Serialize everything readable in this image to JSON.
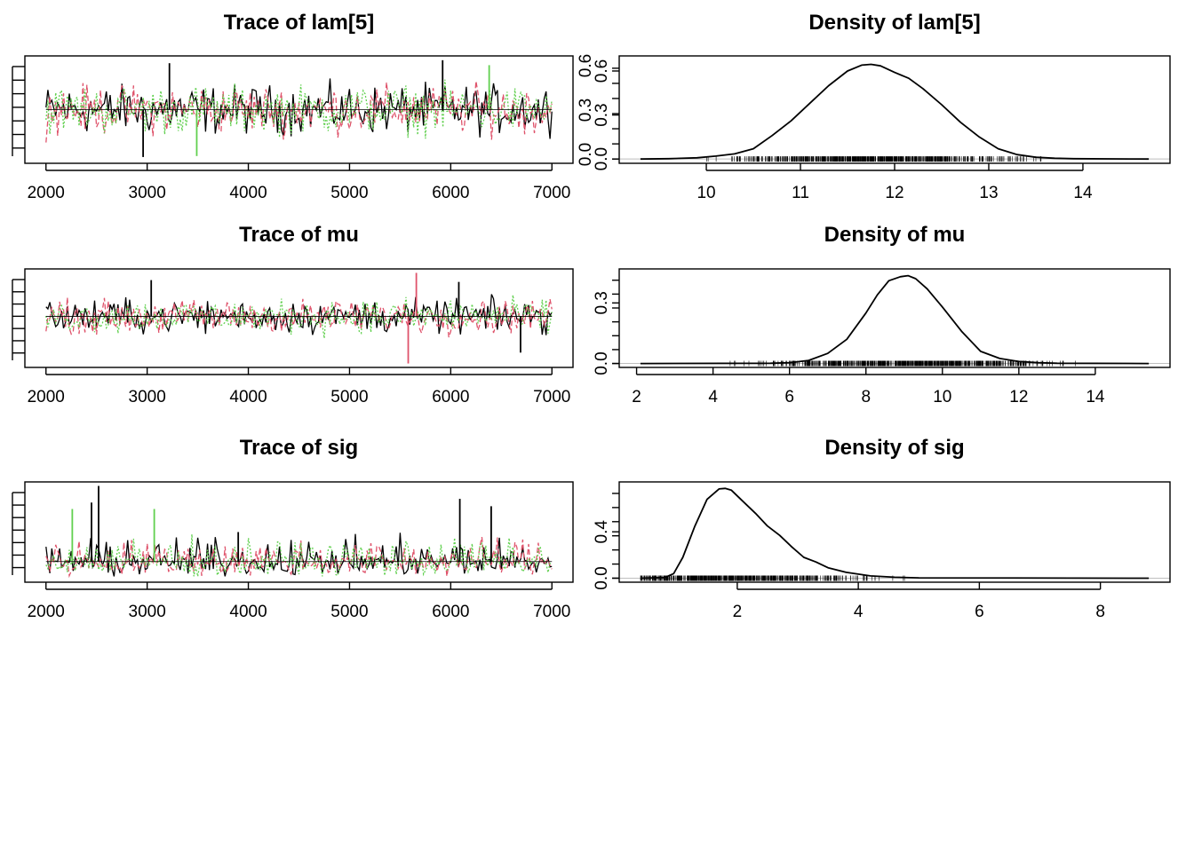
{
  "chart_data": [
    {
      "type": "line",
      "title": "Trace of lam[5]",
      "x_range": [
        2000,
        7000
      ],
      "x_ticks": [
        "2000",
        "3000",
        "4000",
        "5000",
        "6000",
        "7000"
      ],
      "y_tick_labels": [],
      "chains": 3,
      "series_colors": [
        "#000000",
        "#DF536B",
        "#61D04F"
      ],
      "center": 0.5,
      "spread": 0.16,
      "spikes": [
        {
          "x": 3220,
          "y": 0.97,
          "chain": 0
        },
        {
          "x": 5920,
          "y": 1.0,
          "chain": 0
        },
        {
          "x": 6380,
          "y": 0.95,
          "chain": 2
        },
        {
          "x": 2960,
          "y": 0.02,
          "chain": 0
        },
        {
          "x": 3490,
          "y": 0.03,
          "chain": 2
        }
      ]
    },
    {
      "type": "line",
      "title": "Density of lam[5]",
      "x_range": [
        9.3,
        14.7
      ],
      "x_ticks": [
        "10",
        "11",
        "12",
        "13",
        "14"
      ],
      "y_tick_labels": [
        "0.0",
        "0.3",
        "0.6"
      ],
      "ylim": [
        0,
        0.66
      ],
      "x": [
        9.3,
        9.6,
        9.9,
        10.1,
        10.3,
        10.5,
        10.7,
        10.9,
        11.1,
        11.3,
        11.5,
        11.65,
        11.75,
        11.85,
        12.0,
        12.15,
        12.3,
        12.5,
        12.7,
        12.9,
        13.1,
        13.3,
        13.5,
        13.7,
        13.9,
        14.7
      ],
      "y": [
        0.0,
        0.002,
        0.008,
        0.02,
        0.035,
        0.07,
        0.16,
        0.26,
        0.38,
        0.5,
        0.6,
        0.64,
        0.645,
        0.635,
        0.59,
        0.55,
        0.48,
        0.37,
        0.25,
        0.15,
        0.07,
        0.03,
        0.012,
        0.005,
        0.002,
        0.0
      ]
    },
    {
      "type": "line",
      "title": "Trace of mu",
      "x_range": [
        2000,
        7000
      ],
      "x_ticks": [
        "2000",
        "3000",
        "4000",
        "5000",
        "6000",
        "7000"
      ],
      "y_tick_labels": [],
      "chains": 3,
      "series_colors": [
        "#000000",
        "#DF536B",
        "#61D04F"
      ],
      "center": 0.52,
      "spread": 0.12,
      "spikes": [
        {
          "x": 3040,
          "y": 0.92,
          "chain": 0
        },
        {
          "x": 5660,
          "y": 1.0,
          "chain": 1
        },
        {
          "x": 6080,
          "y": 0.9,
          "chain": 0
        },
        {
          "x": 5580,
          "y": 0.0,
          "chain": 1
        },
        {
          "x": 6690,
          "y": 0.12,
          "chain": 0
        }
      ]
    },
    {
      "type": "line",
      "title": "Density of mu",
      "x_range": [
        2.1,
        15.4
      ],
      "x_ticks": [
        "2",
        "4",
        "6",
        "8",
        "10",
        "12",
        "14"
      ],
      "y_tick_labels": [
        "0.0",
        "0.3"
      ],
      "ylim": [
        0,
        0.44
      ],
      "x": [
        2.1,
        5.5,
        6.0,
        6.5,
        7.0,
        7.5,
        8.0,
        8.3,
        8.6,
        8.9,
        9.1,
        9.3,
        9.6,
        10.0,
        10.5,
        11.0,
        11.5,
        12.0,
        12.5,
        13.0,
        15.4
      ],
      "y": [
        0.0,
        0.001,
        0.004,
        0.015,
        0.05,
        0.12,
        0.25,
        0.34,
        0.41,
        0.43,
        0.435,
        0.42,
        0.37,
        0.28,
        0.16,
        0.06,
        0.025,
        0.01,
        0.004,
        0.001,
        0.0
      ]
    },
    {
      "type": "line",
      "title": "Trace of sig",
      "x_range": [
        2000,
        7000
      ],
      "x_ticks": [
        "2000",
        "3000",
        "4000",
        "5000",
        "6000",
        "7000"
      ],
      "y_tick_labels": [],
      "chains": 3,
      "series_colors": [
        "#000000",
        "#DF536B",
        "#61D04F"
      ],
      "center": 0.18,
      "spread": 0.1,
      "skew": true,
      "spikes": [
        {
          "x": 2520,
          "y": 1.0,
          "chain": 0
        },
        {
          "x": 2450,
          "y": 0.82,
          "chain": 0
        },
        {
          "x": 2260,
          "y": 0.75,
          "chain": 2
        },
        {
          "x": 3070,
          "y": 0.75,
          "chain": 2
        },
        {
          "x": 6090,
          "y": 0.86,
          "chain": 0
        },
        {
          "x": 6400,
          "y": 0.78,
          "chain": 0
        },
        {
          "x": 3900,
          "y": 0.5,
          "chain": 0
        }
      ]
    },
    {
      "type": "line",
      "title": "Density of sig",
      "x_range": [
        0.4,
        8.8
      ],
      "x_ticks": [
        "2",
        "4",
        "6",
        "8"
      ],
      "y_tick_labels": [
        "0.0",
        "0.4"
      ],
      "ylim": [
        0,
        0.78
      ],
      "x": [
        0.4,
        0.8,
        0.95,
        1.1,
        1.3,
        1.5,
        1.7,
        1.8,
        1.9,
        2.1,
        2.3,
        2.5,
        2.7,
        2.9,
        3.1,
        3.3,
        3.5,
        3.8,
        4.2,
        4.6,
        5.0,
        8.8
      ],
      "y": [
        0.0,
        0.005,
        0.04,
        0.18,
        0.45,
        0.68,
        0.77,
        0.775,
        0.76,
        0.66,
        0.56,
        0.45,
        0.37,
        0.27,
        0.18,
        0.14,
        0.09,
        0.05,
        0.02,
        0.008,
        0.003,
        0.0
      ]
    }
  ]
}
